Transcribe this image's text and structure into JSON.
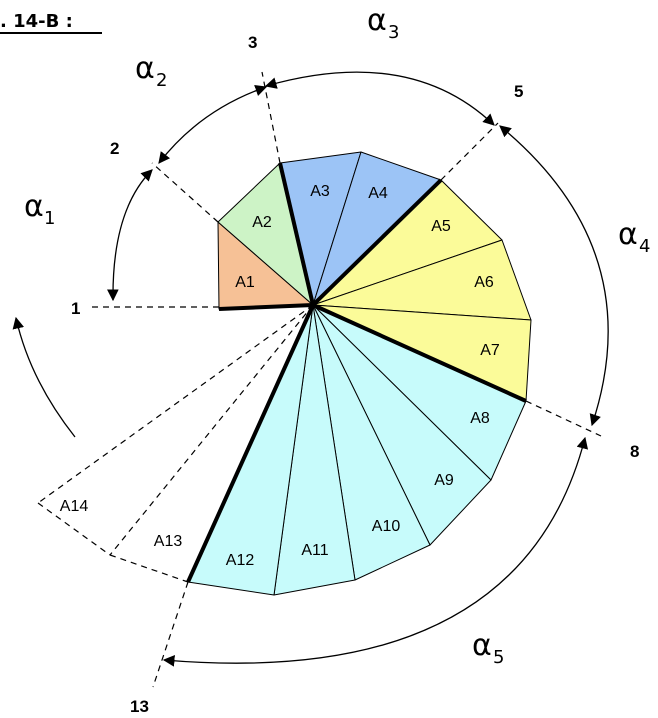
{
  "title": ". 14-B :",
  "colors": {
    "orange": "#f6c196",
    "green": "#cdf3c6",
    "blue": "#9cc4f6",
    "yellow": "#fbfb99",
    "cyan": "#c7fbfb",
    "line": "#000000"
  },
  "sectors": [
    {
      "label": "A1",
      "color": "orange"
    },
    {
      "label": "A2",
      "color": "green"
    },
    {
      "label": "A3",
      "color": "blue"
    },
    {
      "label": "A4",
      "color": "blue"
    },
    {
      "label": "A5",
      "color": "yellow"
    },
    {
      "label": "A6",
      "color": "yellow"
    },
    {
      "label": "A7",
      "color": "yellow"
    },
    {
      "label": "A8",
      "color": "cyan"
    },
    {
      "label": "A9",
      "color": "cyan"
    },
    {
      "label": "A10",
      "color": "cyan"
    },
    {
      "label": "A11",
      "color": "cyan"
    },
    {
      "label": "A12",
      "color": "cyan"
    },
    {
      "label": "A13",
      "color": "none"
    },
    {
      "label": "A14",
      "color": "none"
    }
  ],
  "boundaries": [
    "1",
    "2",
    "3",
    "5",
    "8",
    "13"
  ],
  "angles": [
    {
      "symbol": "α",
      "sub": "1"
    },
    {
      "symbol": "α",
      "sub": "2"
    },
    {
      "symbol": "α",
      "sub": "3"
    },
    {
      "symbol": "α",
      "sub": "4"
    },
    {
      "symbol": "α",
      "sub": "5"
    }
  ]
}
